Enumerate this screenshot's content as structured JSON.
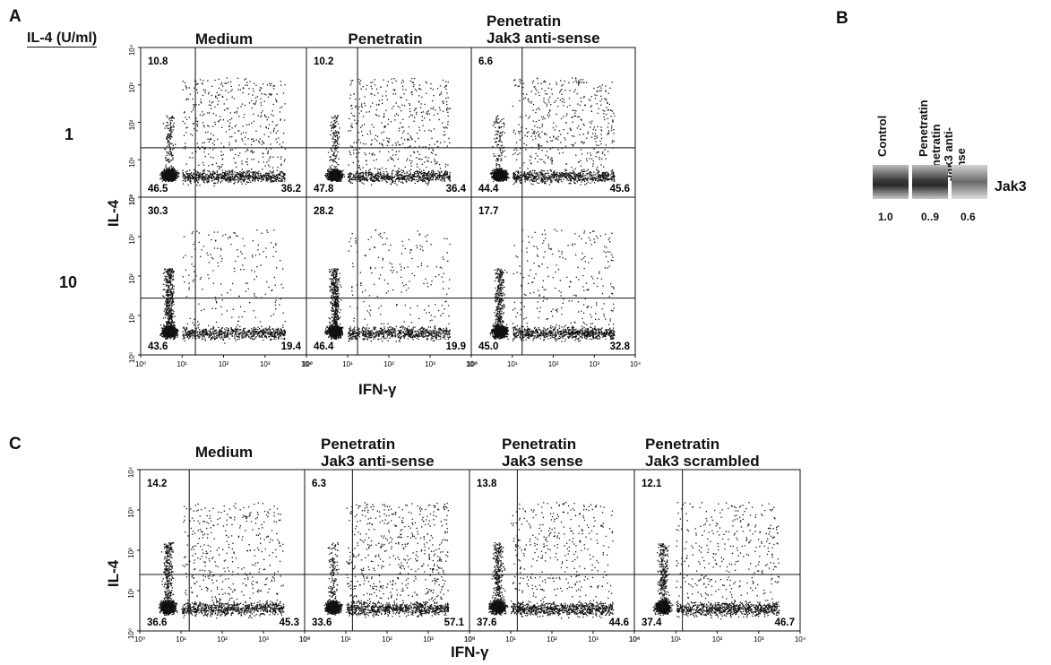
{
  "panel_a": {
    "letter": "A",
    "row_header": "IL-4 (U/ml)",
    "columns": [
      "Medium",
      "Penetratin",
      "Penetratin\nJak3 anti-sense"
    ],
    "rows": [
      "1",
      "10"
    ],
    "y_axis_label": "IL-4",
    "x_axis_label": "IFN-γ",
    "plots": [
      {
        "ul": "10.8",
        "ll": "46.5",
        "lr": "36.2"
      },
      {
        "ul": "10.2",
        "ll": "47.8",
        "lr": "36.4"
      },
      {
        "ul": "6.6",
        "ll": "44.4",
        "lr": "45.6"
      },
      {
        "ul": "30.3",
        "ll": "43.6",
        "lr": "19.4"
      },
      {
        "ul": "28.2",
        "ll": "46.4",
        "lr": "19.9"
      },
      {
        "ul": "17.7",
        "ll": "45.0",
        "lr": "32.8"
      }
    ]
  },
  "panel_b": {
    "letter": "B",
    "lanes": [
      "Control",
      "Penetratin",
      "Penetratin\nJak3 anti-sense"
    ],
    "band_label": "Jak3",
    "values": [
      "1.0",
      "0..9",
      "0.6"
    ]
  },
  "panel_c": {
    "letter": "C",
    "columns": [
      "Medium",
      "Penetratin\nJak3 anti-sense",
      "Penetratin\nJak3 sense",
      "Penetratin\nJak3 scrambled"
    ],
    "y_axis_label": "IL-4",
    "x_axis_label": "IFN-γ",
    "plots": [
      {
        "ul": "14.2",
        "ll": "36.6",
        "lr": "45.3"
      },
      {
        "ul": "6.3",
        "ll": "33.6",
        "lr": "57.1"
      },
      {
        "ul": "13.8",
        "ll": "37.6",
        "lr": "44.6"
      },
      {
        "ul": "12.1",
        "ll": "37.4",
        "lr": "46.7"
      }
    ]
  },
  "tick_labels": [
    "10⁰",
    "10¹",
    "10²",
    "10³",
    "10⁴"
  ]
}
